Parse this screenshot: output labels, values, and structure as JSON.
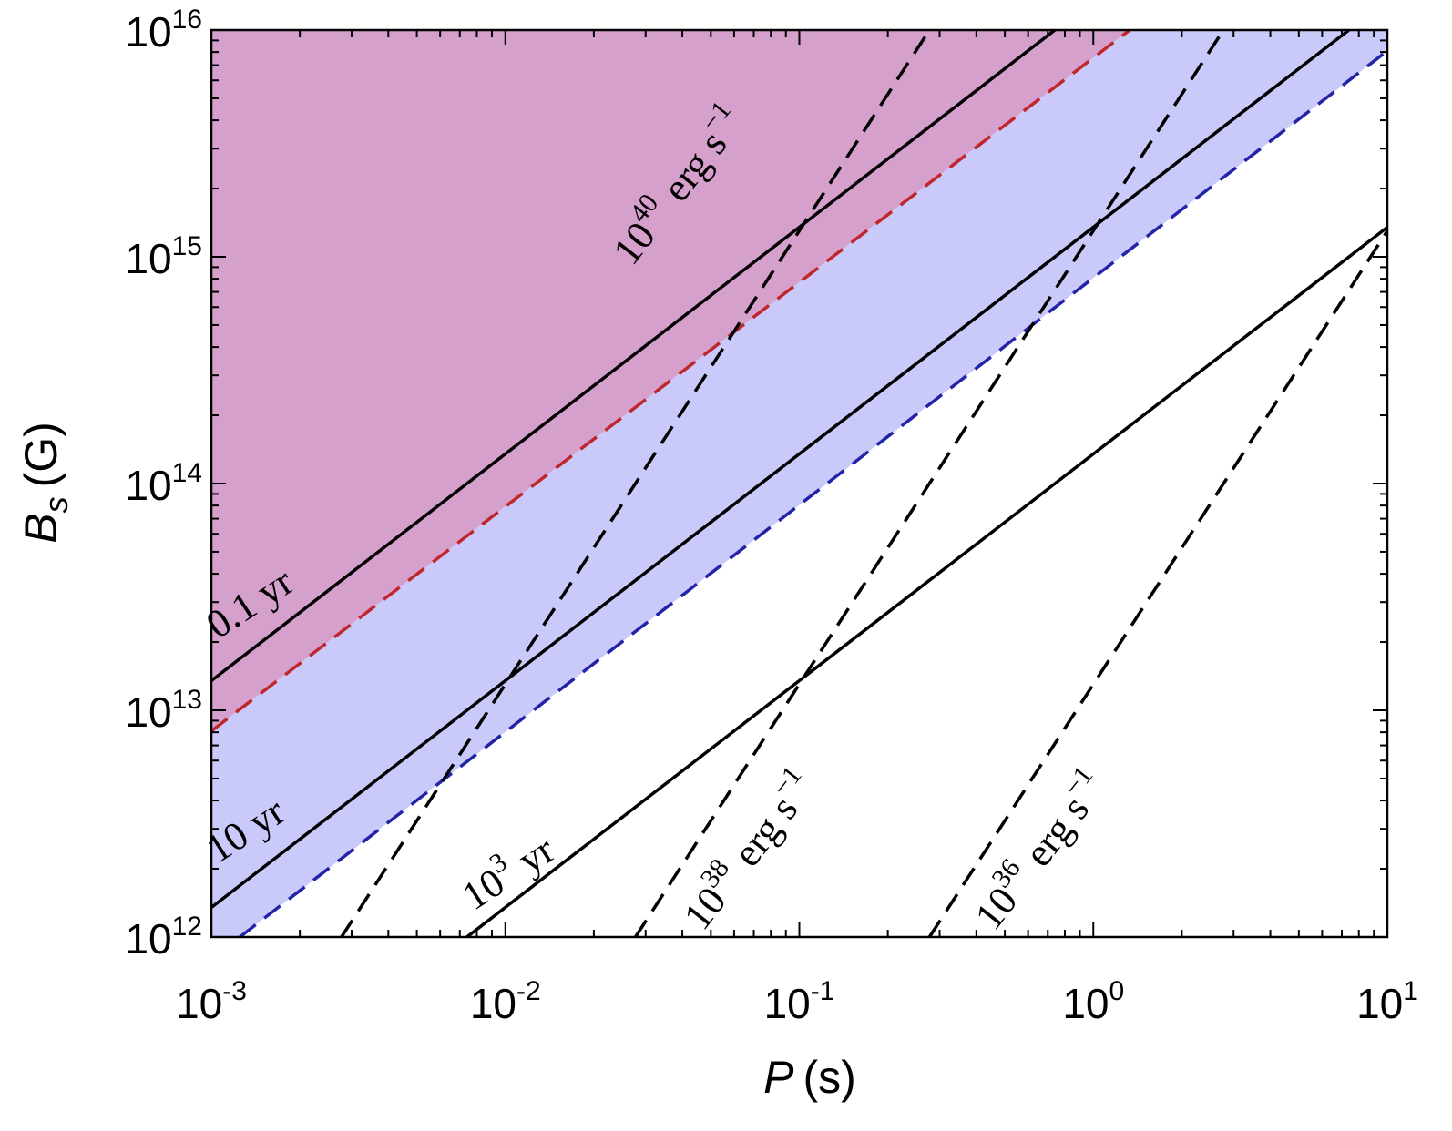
{
  "chart_data": {
    "type": "line",
    "title": "",
    "xlabel": {
      "symbol": "P",
      "unit": "(s)"
    },
    "ylabel": {
      "symbol": "B",
      "subscript": "s",
      "unit": "(G)"
    },
    "xscale": "log",
    "yscale": "log",
    "xlim": [
      0.001,
      10
    ],
    "ylim": [
      1000000000000.0,
      1e+16
    ],
    "grid": false,
    "x_ticks": [
      {
        "base": "10",
        "exp": "-3"
      },
      {
        "base": "10",
        "exp": "-2"
      },
      {
        "base": "10",
        "exp": "-1"
      },
      {
        "base": "10",
        "exp": "0"
      },
      {
        "base": "10",
        "exp": "1"
      }
    ],
    "y_ticks": [
      {
        "base": "10",
        "exp": "12"
      },
      {
        "base": "10",
        "exp": "13"
      },
      {
        "base": "10",
        "exp": "14"
      },
      {
        "base": "10",
        "exp": "15"
      },
      {
        "base": "10",
        "exp": "16"
      }
    ],
    "regions": [
      {
        "name": "upper-region",
        "color": "#d6a0cc",
        "boundary_x": [
          0.001,
          1.33
        ],
        "boundary_y": [
          8100000000000.0,
          1e+16
        ]
      },
      {
        "name": "middle-region",
        "color": "#cacafa",
        "boundary_x": [
          0.00125,
          10
        ],
        "boundary_y": [
          1000000000000.0,
          8100000000000000.0
        ]
      }
    ],
    "series": [
      {
        "style": "solid",
        "color": "#000000",
        "x": [
          0.001,
          0.74
        ],
        "y": [
          13500000000000.0,
          1e+16
        ]
      },
      {
        "style": "solid",
        "color": "#000000",
        "x": [
          0.001,
          7.4
        ],
        "y": [
          1350000000000.0,
          1e+16
        ]
      },
      {
        "style": "solid",
        "color": "#000000",
        "x": [
          0.0074,
          10
        ],
        "y": [
          1000000000000.0,
          1350000000000000.0
        ]
      },
      {
        "style": "dashed",
        "color": "#c0262c",
        "x": [
          0.001,
          1.33
        ],
        "y": [
          8100000000000.0,
          1e+16
        ]
      },
      {
        "style": "dashed",
        "color": "#2323a8",
        "x": [
          0.00125,
          10
        ],
        "y": [
          1000000000000.0,
          8100000000000000.0
        ]
      },
      {
        "style": "dashed",
        "color": "#000000",
        "x": [
          0.00277,
          0.277
        ],
        "y": [
          1000000000000.0,
          1e+16
        ]
      },
      {
        "style": "dashed",
        "color": "#000000",
        "x": [
          0.0277,
          2.77
        ],
        "y": [
          1000000000000.0,
          1e+16
        ]
      },
      {
        "style": "dashed",
        "color": "#000000",
        "x": [
          0.277,
          10
        ],
        "y": [
          1000000000000.0,
          1300000000000000.0
        ]
      }
    ],
    "annotations": [
      {
        "name": "label-0-1-yr",
        "text": "0.1 yr",
        "x": 0.00105,
        "y": 20500000000000.0,
        "angle": 33
      },
      {
        "name": "label-10-yr",
        "text": "10 yr",
        "x": 0.00105,
        "y": 2100000000000.0,
        "angle": 33
      },
      {
        "name": "label-1e3-yr",
        "base": "10",
        "sup": "3",
        "text": "yr",
        "x": 0.0078,
        "y": 1300000000000.0,
        "angle": 33
      },
      {
        "name": "label-1e40",
        "base": "10",
        "sup": "40",
        "text": "erg s",
        "sup2": "−1",
        "x": 0.027,
        "y": 900000000000000.0,
        "angle": 52
      },
      {
        "name": "label-1e38",
        "base": "10",
        "sup": "38",
        "text": "erg s",
        "sup2": "−1",
        "x": 0.047,
        "y": 1050000000000.0,
        "angle": 52
      },
      {
        "name": "label-1e36",
        "base": "10",
        "sup": "36",
        "text": "erg s",
        "sup2": "−1",
        "x": 0.46,
        "y": 1050000000000.0,
        "angle": 52
      }
    ]
  }
}
